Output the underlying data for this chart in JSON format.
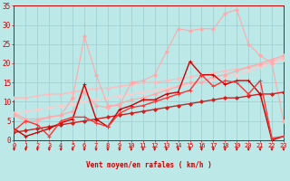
{
  "bg_color": "#bde8e8",
  "grid_color": "#9ecece",
  "x_label": "Vent moyen/en rafales ( km/h )",
  "x_min": 0,
  "x_max": 23,
  "y_min": 0,
  "y_max": 35,
  "y_ticks": [
    0,
    5,
    10,
    15,
    20,
    25,
    30,
    35
  ],
  "x_ticks": [
    0,
    1,
    2,
    3,
    4,
    5,
    6,
    7,
    8,
    9,
    10,
    11,
    12,
    13,
    14,
    15,
    16,
    17,
    18,
    19,
    20,
    21,
    22,
    23
  ],
  "series": [
    {
      "x": [
        0,
        1,
        2,
        3,
        4,
        5,
        6,
        7,
        8,
        9,
        10,
        11,
        12,
        13,
        14,
        15,
        16,
        17,
        18,
        19,
        20,
        21,
        22,
        23
      ],
      "y": [
        7.0,
        7.5,
        8.0,
        8.5,
        9.0,
        9.5,
        10.0,
        10.5,
        11.0,
        11.5,
        12.0,
        12.5,
        13.0,
        13.5,
        14.0,
        14.5,
        15.0,
        16.0,
        16.5,
        17.0,
        18.0,
        19.0,
        20.0,
        21.0
      ],
      "color": "#ffcccc",
      "linewidth": 0.9,
      "marker": "D",
      "markersize": 1.8
    },
    {
      "x": [
        0,
        1,
        2,
        3,
        4,
        5,
        6,
        7,
        8,
        9,
        10,
        11,
        12,
        13,
        14,
        15,
        16,
        17,
        18,
        19,
        20,
        21,
        22,
        23
      ],
      "y": [
        11.0,
        11.0,
        11.5,
        12.0,
        12.0,
        12.5,
        13.0,
        13.5,
        13.5,
        14.0,
        14.5,
        15.0,
        15.0,
        15.5,
        16.0,
        16.5,
        17.0,
        17.5,
        18.0,
        18.5,
        19.0,
        19.5,
        20.5,
        21.5
      ],
      "color": "#ffbbbb",
      "linewidth": 0.9,
      "marker": "D",
      "markersize": 1.8
    },
    {
      "x": [
        0,
        1,
        2,
        3,
        4,
        5,
        6,
        7,
        8,
        9,
        10,
        11,
        12,
        13,
        14,
        15,
        16,
        17,
        18,
        19,
        20,
        21,
        22,
        23
      ],
      "y": [
        7.0,
        5.5,
        5.5,
        6.0,
        6.5,
        7.5,
        12.5,
        9.0,
        8.5,
        9.5,
        10.5,
        11.0,
        12.0,
        13.0,
        14.0,
        15.0,
        15.0,
        16.5,
        17.0,
        18.0,
        19.0,
        20.0,
        21.0,
        22.0
      ],
      "color": "#ffaaaa",
      "linewidth": 0.9,
      "marker": "D",
      "markersize": 2.0
    },
    {
      "x": [
        0,
        1,
        2,
        3,
        4,
        5,
        6,
        7,
        8,
        9,
        10,
        11,
        12,
        13,
        14,
        15,
        16,
        17,
        18,
        19,
        20,
        21,
        22,
        23
      ],
      "y": [
        6.5,
        5.0,
        5.0,
        6.0,
        6.5,
        11.0,
        27.0,
        17.0,
        9.0,
        9.0,
        15.0,
        15.5,
        17.0,
        23.0,
        29.0,
        28.5,
        29.0,
        29.0,
        33.0,
        34.0,
        25.0,
        22.0,
        20.0,
        5.0
      ],
      "color": "#ffaaaa",
      "linewidth": 0.8,
      "marker": "D",
      "markersize": 2.0
    },
    {
      "x": [
        0,
        1,
        2,
        3,
        4,
        5,
        6,
        7,
        8,
        9,
        10,
        11,
        12,
        13,
        14,
        15,
        16,
        17,
        18,
        19,
        20,
        21,
        22,
        23
      ],
      "y": [
        2.0,
        2.5,
        3.0,
        3.5,
        4.0,
        4.5,
        5.0,
        5.5,
        6.0,
        6.5,
        7.0,
        7.5,
        8.0,
        8.5,
        9.0,
        9.5,
        10.0,
        10.5,
        11.0,
        11.0,
        11.5,
        12.0,
        12.0,
        12.5
      ],
      "color": "#cc2222",
      "linewidth": 1.0,
      "marker": "D",
      "markersize": 2.0
    },
    {
      "x": [
        0,
        1,
        2,
        3,
        4,
        5,
        6,
        7,
        8,
        9,
        10,
        11,
        12,
        13,
        14,
        15,
        16,
        17,
        18,
        19,
        20,
        21,
        22,
        23
      ],
      "y": [
        3.0,
        1.0,
        2.0,
        3.0,
        4.5,
        5.5,
        14.5,
        5.5,
        3.5,
        8.0,
        9.0,
        10.5,
        10.5,
        12.0,
        12.5,
        20.5,
        17.0,
        17.0,
        14.5,
        15.5,
        15.5,
        12.0,
        0.0,
        1.0
      ],
      "color": "#cc0000",
      "linewidth": 1.0,
      "marker": "+",
      "markersize": 3.5
    },
    {
      "x": [
        0,
        1,
        2,
        3,
        4,
        5,
        6,
        7,
        8,
        9,
        10,
        11,
        12,
        13,
        14,
        15,
        16,
        17,
        18,
        19,
        20,
        21,
        22,
        23
      ],
      "y": [
        2.5,
        5.0,
        4.0,
        1.0,
        5.0,
        6.0,
        6.0,
        4.5,
        3.5,
        7.0,
        8.5,
        9.0,
        10.0,
        11.0,
        12.0,
        13.0,
        17.0,
        14.0,
        15.5,
        15.0,
        12.0,
        15.5,
        0.5,
        1.0
      ],
      "color": "#ff3333",
      "linewidth": 1.0,
      "marker": "+",
      "markersize": 3.5
    }
  ],
  "arrow_color": "#cc0000",
  "label_color": "#cc0000",
  "tick_color": "#cc0000",
  "spine_color": "#cc0000"
}
